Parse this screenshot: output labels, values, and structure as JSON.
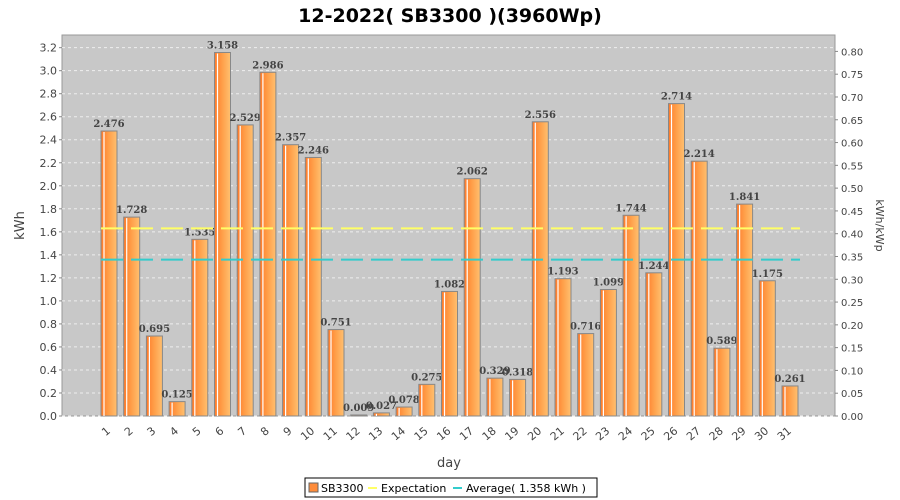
{
  "chart_data": {
    "type": "bar",
    "title": "12-2022( SB3300 )(3960Wp)",
    "xlabel": "day",
    "ylabel": "kWh",
    "ylabel_right": "kWh/kWp",
    "ylim": [
      0,
      3.31
    ],
    "ylim_right": [
      0,
      0.836
    ],
    "yticks": [
      "0.0",
      "0.2",
      "0.4",
      "0.6",
      "0.8",
      "1.0",
      "1.2",
      "1.4",
      "1.6",
      "1.8",
      "2.0",
      "2.2",
      "2.4",
      "2.6",
      "2.8",
      "3.0",
      "3.2"
    ],
    "yticks_right": [
      "0.00",
      "0.05",
      "0.10",
      "0.15",
      "0.20",
      "0.25",
      "0.30",
      "0.35",
      "0.40",
      "0.45",
      "0.50",
      "0.55",
      "0.60",
      "0.65",
      "0.70",
      "0.75",
      "0.80"
    ],
    "categories": [
      "1",
      "2",
      "3",
      "4",
      "5",
      "6",
      "7",
      "8",
      "9",
      "10",
      "11",
      "12",
      "13",
      "14",
      "15",
      "16",
      "17",
      "18",
      "19",
      "20",
      "21",
      "22",
      "23",
      "24",
      "25",
      "26",
      "27",
      "28",
      "29",
      "30",
      "31"
    ],
    "series": [
      {
        "name": "SB3300",
        "color": "#ff8c3a",
        "values": [
          2.476,
          1.728,
          0.695,
          0.125,
          1.535,
          3.158,
          2.529,
          2.986,
          2.357,
          2.246,
          0.751,
          0.009,
          0.027,
          0.078,
          0.275,
          1.082,
          2.062,
          0.329,
          0.318,
          2.556,
          1.193,
          0.716,
          1.099,
          1.744,
          1.244,
          2.714,
          2.214,
          0.589,
          1.841,
          1.175,
          0.261
        ]
      }
    ],
    "lines": [
      {
        "name": "Expectation",
        "value": 1.63,
        "color": "#ffff66"
      },
      {
        "name": "Average( 1.358 kWh )",
        "value": 1.358,
        "color": "#33cccc"
      }
    ],
    "grid": true,
    "legend": "bottom"
  }
}
